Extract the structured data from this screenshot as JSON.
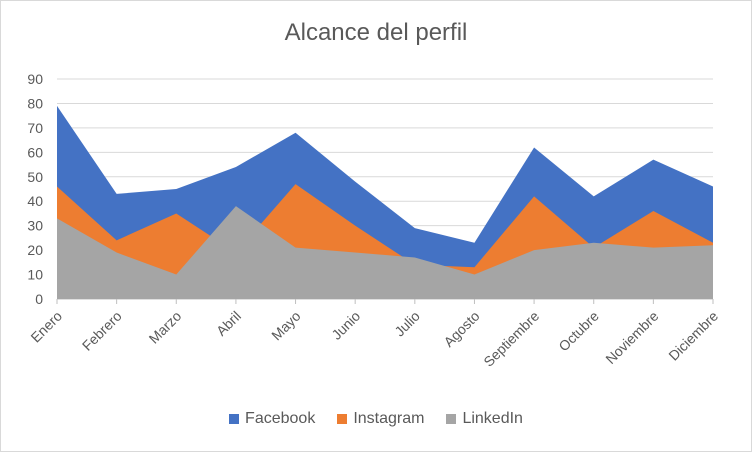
{
  "chart_data": {
    "type": "area",
    "title": "Alcance del perfil",
    "categories": [
      "Enero",
      "Febrero",
      "Marzo",
      "Abril",
      "Mayo",
      "Junio",
      "Julio",
      "Agosto",
      "Septiembre",
      "Octubre",
      "Noviembre",
      "Diciembre"
    ],
    "series": [
      {
        "name": "Facebook",
        "color": "#4472c4",
        "values": [
          79,
          43,
          45,
          54,
          68,
          48,
          29,
          23,
          62,
          42,
          57,
          46
        ]
      },
      {
        "name": "Instagram",
        "color": "#ed7d31",
        "values": [
          46,
          24,
          35,
          19,
          47,
          30,
          14,
          13,
          42,
          21,
          36,
          23
        ]
      },
      {
        "name": "LinkedIn",
        "color": "#a5a5a5",
        "values": [
          33,
          19,
          10,
          38,
          21,
          19,
          17,
          10,
          20,
          23,
          21,
          22
        ]
      }
    ],
    "yticks": [
      "0",
      "10",
      "20",
      "30",
      "40",
      "50",
      "60",
      "70",
      "80",
      "90"
    ],
    "ylim": [
      0,
      90
    ],
    "grid": true,
    "legend_position": "bottom"
  }
}
